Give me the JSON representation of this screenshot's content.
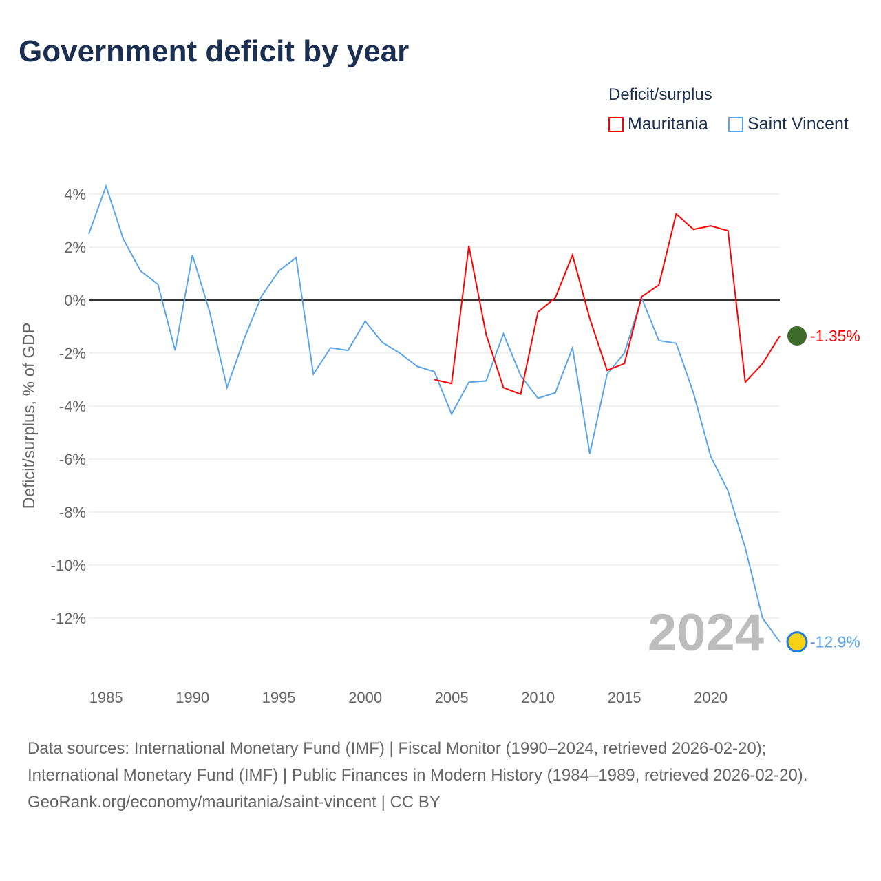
{
  "title": "Government deficit by year",
  "legend": {
    "title": "Deficit/surplus",
    "items": [
      {
        "label": "Mauritania",
        "color": "#ff0000"
      },
      {
        "label": "Saint Vincent",
        "color": "#5aa5ea"
      }
    ]
  },
  "watermark_year": "2024",
  "footer": {
    "sources": "Data sources: International Monetary Fund (IMF) | Fiscal Monitor (1990–2024, retrieved 2026-02-20); International Monetary Fund (IMF) | Public Finances in Modern History (1984–1989, retrieved 2026-02-20).",
    "credit": "GeoRank.org/economy/mauritania/saint-vincent | CC BY"
  },
  "chart_data": {
    "type": "line",
    "title": "Government deficit by year",
    "xlabel": "",
    "ylabel": "Deficit/surplus, % of GDP",
    "xlim": [
      1984,
      2024
    ],
    "ylim": [
      -13.5,
      4.5
    ],
    "xticks": [
      1985,
      1990,
      1995,
      2000,
      2005,
      2010,
      2015,
      2020
    ],
    "yticks": [
      4,
      2,
      0,
      -2,
      -4,
      -6,
      -8,
      -10,
      -12
    ],
    "ytick_labels": [
      "4%",
      "2%",
      "0%",
      "-2%",
      "-4%",
      "-6%",
      "-8%",
      "-10%",
      "-12%"
    ],
    "grid": true,
    "series": [
      {
        "name": "Mauritania",
        "color": "#ff0000",
        "end_label": "-1.35%",
        "x": [
          2004,
          2005,
          2006,
          2007,
          2008,
          2009,
          2010,
          2011,
          2012,
          2013,
          2014,
          2015,
          2016,
          2017,
          2018,
          2019,
          2020,
          2021,
          2022,
          2023,
          2024
        ],
        "values": [
          -3.0,
          -3.15,
          2.05,
          -1.3,
          -3.3,
          -3.55,
          -0.45,
          0.08,
          1.7,
          -0.7,
          -2.65,
          -2.4,
          0.13,
          0.57,
          3.25,
          2.67,
          2.8,
          2.62,
          -3.1,
          -2.4,
          -1.35
        ]
      },
      {
        "name": "Saint Vincent",
        "color": "#5aa5ea",
        "end_label": "-12.9%",
        "x": [
          1984,
          1985,
          1986,
          1987,
          1988,
          1989,
          1990,
          1991,
          1992,
          1993,
          1994,
          1995,
          1996,
          1997,
          1998,
          1999,
          2000,
          2001,
          2002,
          2003,
          2004,
          2005,
          2006,
          2007,
          2008,
          2009,
          2010,
          2011,
          2012,
          2013,
          2014,
          2015,
          2016,
          2017,
          2018,
          2019,
          2020,
          2021,
          2022,
          2023,
          2024
        ],
        "values": [
          2.5,
          4.3,
          2.3,
          1.1,
          0.6,
          -1.9,
          1.7,
          -0.45,
          -3.3,
          -1.45,
          0.15,
          1.1,
          1.6,
          -2.8,
          -1.8,
          -1.9,
          -0.8,
          -1.6,
          -2.0,
          -2.5,
          -2.7,
          -4.3,
          -3.1,
          -3.05,
          -1.27,
          -2.85,
          -3.7,
          -3.5,
          -1.8,
          -5.8,
          -2.8,
          -2.0,
          0.08,
          -1.53,
          -1.63,
          -3.5,
          -5.9,
          -7.2,
          -9.35,
          -12.0,
          -12.9
        ]
      }
    ]
  }
}
